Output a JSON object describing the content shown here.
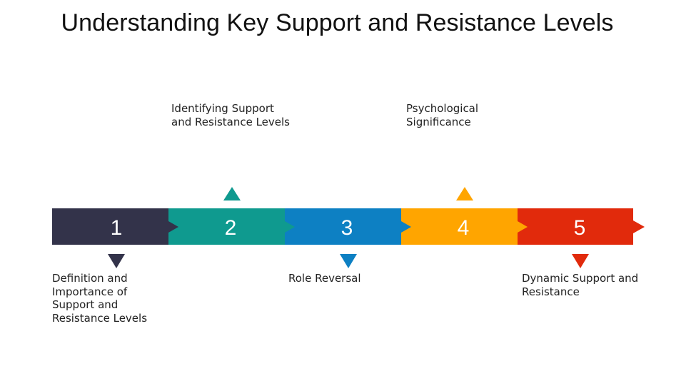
{
  "title": "Understanding Key Support and Resistance Levels",
  "steps": [
    {
      "number": "1",
      "label": "Definition and\nImportance of\nSupport and\nResistance Levels",
      "color": "#33334a",
      "marker": "down"
    },
    {
      "number": "2",
      "label": "Identifying Support\nand Resistance Levels",
      "color": "#0f9a8f",
      "marker": "up"
    },
    {
      "number": "3",
      "label": "Role Reversal",
      "color": "#0d80c3",
      "marker": "down"
    },
    {
      "number": "4",
      "label": "Psychological\nSignificance",
      "color": "#ffa500",
      "marker": "up"
    },
    {
      "number": "5",
      "label": "Dynamic Support and\nResistance",
      "color": "#e12a0c",
      "marker": "down"
    }
  ]
}
